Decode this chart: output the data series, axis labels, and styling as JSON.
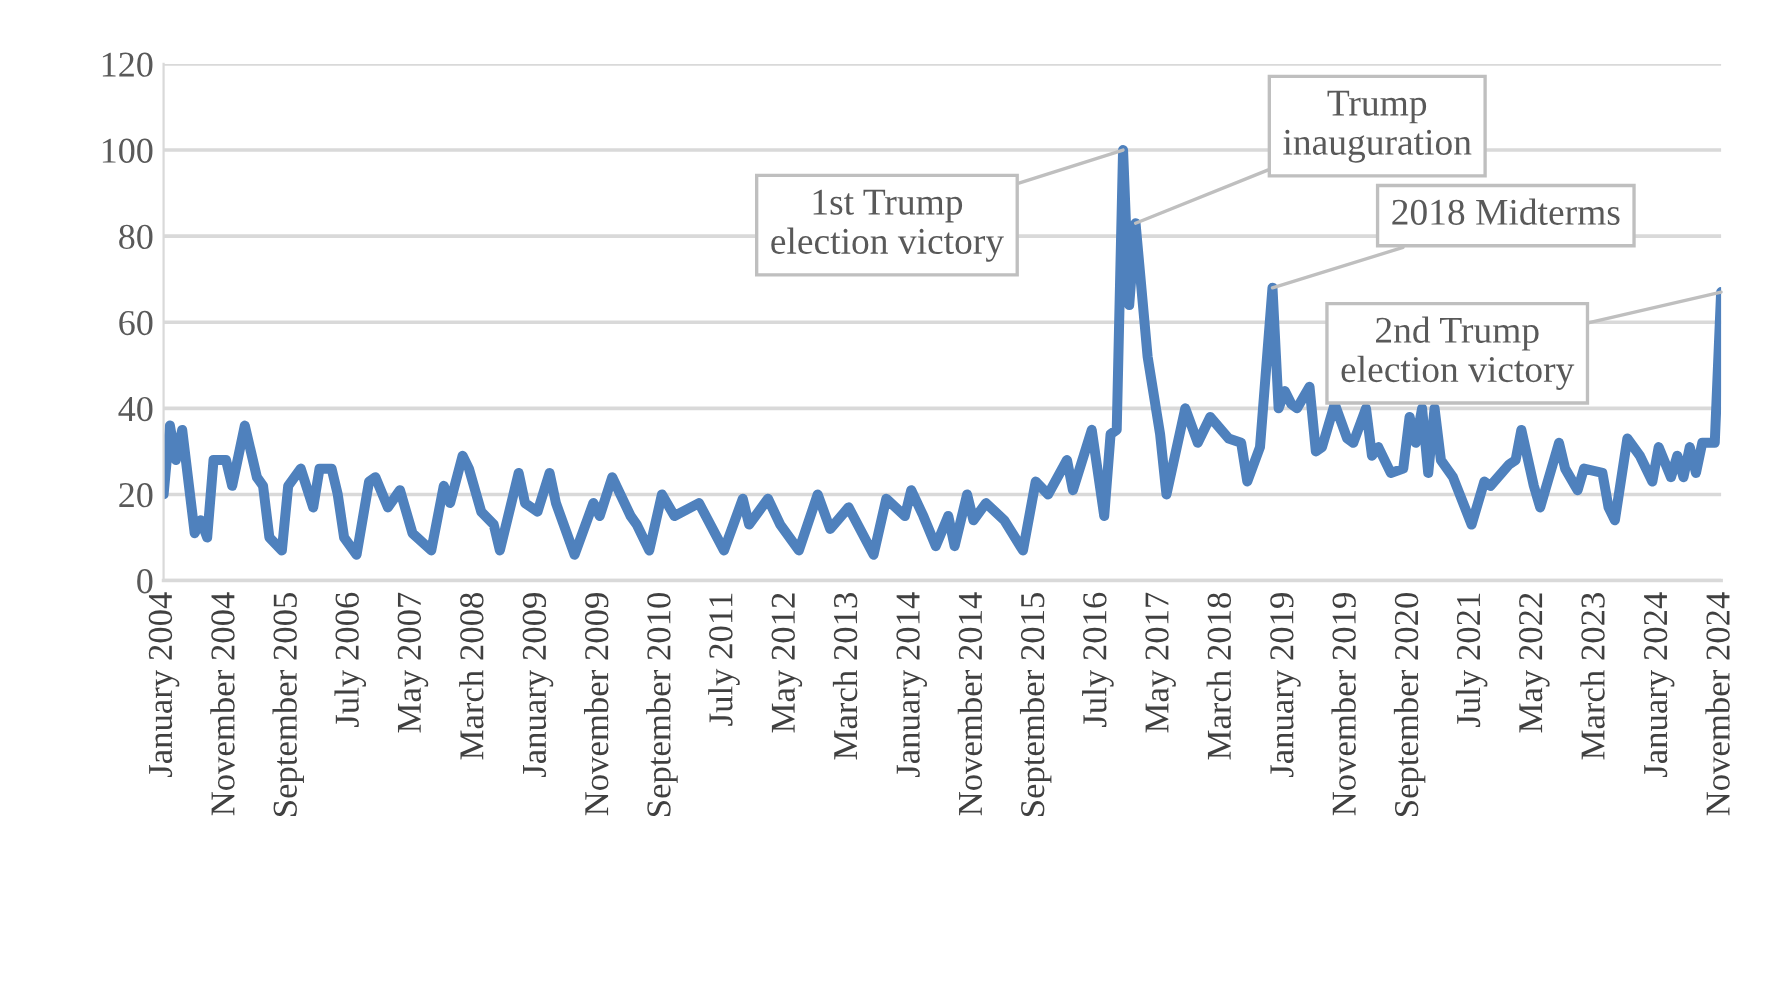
{
  "chart_data": {
    "type": "line",
    "x": [
      "2004-01",
      "2004-02",
      "2004-03",
      "2004-04",
      "2004-06",
      "2004-07",
      "2004-08",
      "2004-09",
      "2004-11",
      "2004-12",
      "2005-02",
      "2005-04",
      "2005-05",
      "2005-06",
      "2005-08",
      "2005-09",
      "2005-11",
      "2006-01",
      "2006-02",
      "2006-04",
      "2006-05",
      "2006-06",
      "2006-08",
      "2006-10",
      "2006-11",
      "2007-01",
      "2007-03",
      "2007-05",
      "2007-08",
      "2007-10",
      "2007-11",
      "2008-01",
      "2008-02",
      "2008-04",
      "2008-06",
      "2008-07",
      "2008-10",
      "2008-11",
      "2009-01",
      "2009-03",
      "2009-04",
      "2009-07",
      "2009-10",
      "2009-11",
      "2010-01",
      "2010-04",
      "2010-05",
      "2010-07",
      "2010-09",
      "2010-11",
      "2011-03",
      "2011-07",
      "2011-10",
      "2011-11",
      "2012-02",
      "2012-04",
      "2012-07",
      "2012-10",
      "2012-12",
      "2013-03",
      "2013-07",
      "2013-09",
      "2013-12",
      "2014-01",
      "2014-03",
      "2014-05",
      "2014-07",
      "2014-08",
      "2014-10",
      "2014-11",
      "2015-01",
      "2015-04",
      "2015-07",
      "2015-09",
      "2015-11",
      "2016-02",
      "2016-03",
      "2016-06",
      "2016-08",
      "2016-09",
      "2016-10",
      "2016-11",
      "2016-12",
      "2017-01",
      "2017-03",
      "2017-05",
      "2017-06",
      "2017-09",
      "2017-11",
      "2018-01",
      "2018-04",
      "2018-06",
      "2018-07",
      "2018-09",
      "2018-11",
      "2018-12",
      "2019-01",
      "2019-02",
      "2019-03",
      "2019-05",
      "2019-06",
      "2019-07",
      "2019-09",
      "2019-11",
      "2019-12",
      "2020-02",
      "2020-03",
      "2020-04",
      "2020-06",
      "2020-08",
      "2020-09",
      "2020-10",
      "2020-11",
      "2020-12",
      "2021-01",
      "2021-02",
      "2021-04",
      "2021-07",
      "2021-09",
      "2021-10",
      "2022-01",
      "2022-02",
      "2022-03",
      "2022-05",
      "2022-06",
      "2022-09",
      "2022-10",
      "2022-12",
      "2023-01",
      "2023-04",
      "2023-05",
      "2023-06",
      "2023-08",
      "2023-10",
      "2023-12",
      "2024-01",
      "2024-03",
      "2024-04",
      "2024-05",
      "2024-06",
      "2024-07",
      "2024-08",
      "2024-10",
      "2024-11"
    ],
    "series": [
      {
        "color": "#4f81bd",
        "values": [
          20,
          36,
          28,
          35,
          11,
          14,
          10,
          28,
          28,
          22,
          36,
          24,
          22,
          10,
          7,
          22,
          26,
          17,
          26,
          26,
          20,
          10,
          6,
          23,
          24,
          17,
          21,
          11,
          7,
          22,
          18,
          29,
          26,
          16,
          13,
          7,
          25,
          18,
          16,
          25,
          18,
          6,
          18,
          15,
          24,
          15,
          13,
          7,
          20,
          15,
          18,
          7,
          19,
          13,
          19,
          13,
          7,
          20,
          12,
          17,
          6,
          19,
          15,
          21,
          15,
          8,
          15,
          8,
          20,
          14,
          18,
          14,
          7,
          23,
          20,
          28,
          21,
          35,
          15,
          34,
          35,
          100,
          64,
          83,
          52,
          34,
          20,
          40,
          32,
          38,
          33,
          32,
          23,
          31,
          68,
          40,
          44,
          41,
          40,
          45,
          30,
          31,
          41,
          33,
          32,
          40,
          29,
          31,
          25,
          26,
          38,
          32,
          40,
          25,
          40,
          28,
          24,
          13,
          23,
          22,
          27,
          28,
          35,
          22,
          17,
          32,
          26,
          21,
          26,
          25,
          17,
          14,
          33,
          29,
          23,
          31,
          24,
          29,
          24,
          31,
          25,
          32,
          32,
          67
        ]
      }
    ],
    "ylim": [
      0,
      120
    ],
    "yticks": [
      0,
      20,
      40,
      60,
      80,
      100,
      120
    ],
    "xlim": [
      "2004-01",
      "2024-11"
    ],
    "xticks": [
      {
        "value": "2004-01",
        "label": "January 2004"
      },
      {
        "value": "2004-11",
        "label": "November 2004"
      },
      {
        "value": "2005-09",
        "label": "September 2005"
      },
      {
        "value": "2006-07",
        "label": "July 2006"
      },
      {
        "value": "2007-05",
        "label": "May 2007"
      },
      {
        "value": "2008-03",
        "label": "March 2008"
      },
      {
        "value": "2009-01",
        "label": "January 2009"
      },
      {
        "value": "2009-11",
        "label": "November 2009"
      },
      {
        "value": "2010-09",
        "label": "September 2010"
      },
      {
        "value": "2011-07",
        "label": "July 2011"
      },
      {
        "value": "2012-05",
        "label": "May 2012"
      },
      {
        "value": "2013-03",
        "label": "March 2013"
      },
      {
        "value": "2014-01",
        "label": "January 2014"
      },
      {
        "value": "2014-11",
        "label": "November 2014"
      },
      {
        "value": "2015-09",
        "label": "September 2015"
      },
      {
        "value": "2016-07",
        "label": "July 2016"
      },
      {
        "value": "2017-05",
        "label": "May 2017"
      },
      {
        "value": "2018-03",
        "label": "March 2018"
      },
      {
        "value": "2019-01",
        "label": "January 2019"
      },
      {
        "value": "2019-11",
        "label": "November 2019"
      },
      {
        "value": "2020-09",
        "label": "September 2020"
      },
      {
        "value": "2021-07",
        "label": "July 2021"
      },
      {
        "value": "2022-05",
        "label": "May 2022"
      },
      {
        "value": "2023-03",
        "label": "March 2023"
      },
      {
        "value": "2024-01",
        "label": "January 2024"
      },
      {
        "value": "2024-11",
        "label": "November 2024"
      }
    ],
    "annotations": [
      {
        "text": "1st Trump\nelection victory",
        "x": "2016-11",
        "y": 100
      },
      {
        "text": "Trump\ninauguration",
        "x": "2017-01",
        "y": 83
      },
      {
        "text": "2018 Midterms",
        "x": "2018-11",
        "y": 68
      },
      {
        "text": "2nd Trump\nelection victory",
        "x": "2024-11",
        "y": 67
      }
    ],
    "grid": "y",
    "line_style": "solid",
    "marker": "none"
  }
}
